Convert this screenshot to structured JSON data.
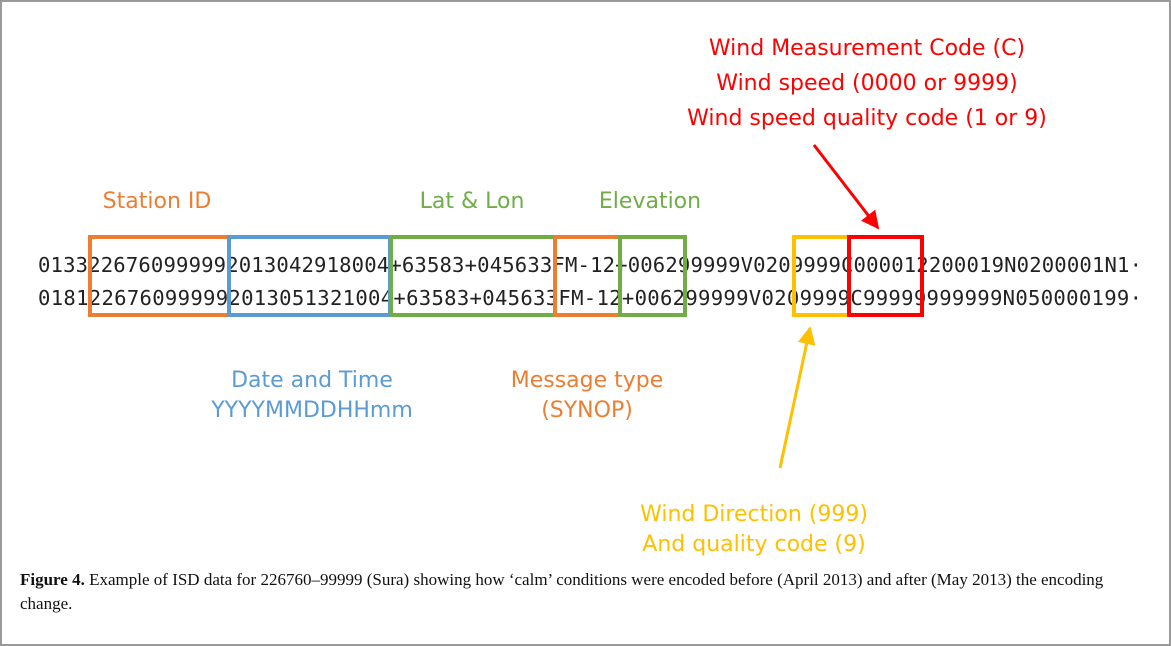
{
  "labels": {
    "station_id": "Station ID",
    "lat_lon": "Lat & Lon",
    "elevation": "Elevation",
    "wind_measurement": [
      "Wind Measurement Code (C)",
      "Wind speed (0000 or 9999)",
      "Wind speed quality code (1 or 9)"
    ],
    "date_time": [
      "Date and Time",
      "YYYYMMDDHHmm"
    ],
    "message_type": [
      "Message type",
      "(SYNOP)"
    ],
    "wind_direction": [
      "Wind Direction (999)",
      "And quality code (9)"
    ]
  },
  "records": [
    "0133226760999992013042918004+63583+045633FM-12+006299999V0209999C000012200019N0200001N1·",
    "0181226760999992013051321004+63583+045633FM-12+006299999V0209999C99999999999N050000199·"
  ],
  "caption": {
    "label": "Figure 4.",
    "text": "Example of ISD data for 226760–99999 (Sura) showing how ‘calm’ conditions were encoded before (April 2013) and after (May 2013) the encoding change."
  }
}
